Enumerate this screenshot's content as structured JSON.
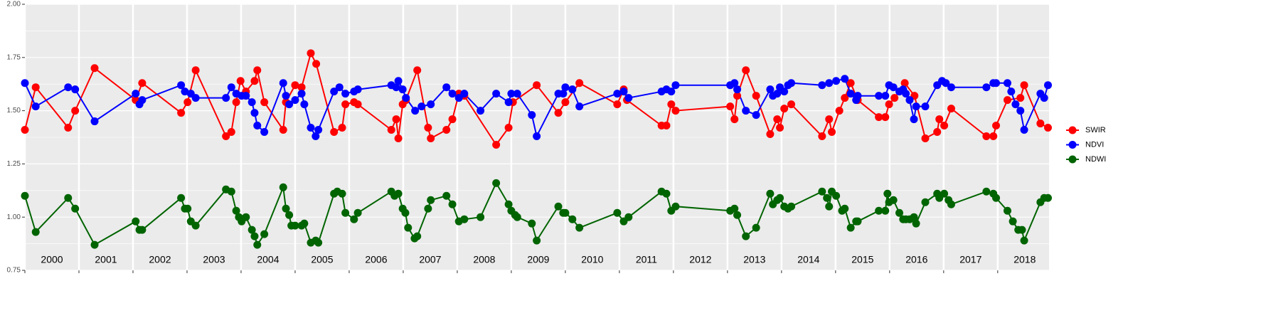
{
  "chart_data": {
    "type": "line",
    "xlim": [
      2000,
      2018.95
    ],
    "ylim": [
      0.75,
      2.0
    ],
    "yticks": [
      0.75,
      {
        "value": 1,
        "label": "1.00"
      },
      1.25,
      {
        "value": 1.5,
        "label": "1.50"
      },
      1.75,
      {
        "value": 2,
        "label": "2.00"
      }
    ],
    "y_minor_ticks": [
      0.875,
      1.125,
      1.375,
      1.625,
      1.875
    ],
    "xgrid": [
      2000,
      2001,
      2002,
      2003,
      2004,
      2005,
      2006,
      2007,
      2008,
      2009,
      2010,
      2011,
      2012,
      2013,
      2014,
      2015,
      2016,
      2017,
      2018
    ],
    "xticks": [
      {
        "value": 2000.5,
        "label": "2000"
      },
      {
        "value": 2001.5,
        "label": "2001"
      },
      {
        "value": 2002.5,
        "label": "2002"
      },
      {
        "value": 2003.5,
        "label": "2003"
      },
      {
        "value": 2004.5,
        "label": "2004"
      },
      {
        "value": 2005.5,
        "label": "2005"
      },
      {
        "value": 2006.5,
        "label": "2006"
      },
      {
        "value": 2007.5,
        "label": "2007"
      },
      {
        "value": 2008.5,
        "label": "2008"
      },
      {
        "value": 2009.5,
        "label": "2009"
      },
      {
        "value": 2010.5,
        "label": "2010"
      },
      {
        "value": 2011.5,
        "label": "2011"
      },
      {
        "value": 2012.5,
        "label": "2012"
      },
      {
        "value": 2013.5,
        "label": "2013"
      },
      {
        "value": 2014.5,
        "label": "2014"
      },
      {
        "value": 2015.5,
        "label": "2015"
      },
      {
        "value": 2016.5,
        "label": "2016"
      },
      {
        "value": 2017.5,
        "label": "2017"
      },
      {
        "value": 2018.5,
        "label": "2018"
      }
    ],
    "grid": true,
    "legend": "right",
    "series": [
      {
        "name": "SWIR",
        "color": "#ff0000",
        "x": [
          2000.0,
          2000.2,
          2000.8,
          2000.93,
          2001.29,
          2002.05,
          2002.17,
          2002.89,
          2003.01,
          2003.16,
          2003.72,
          2003.82,
          2003.91,
          2003.99,
          2004.09,
          2004.25,
          2004.3,
          2004.43,
          2004.78,
          2004.83,
          2005.0,
          2005.12,
          2005.29,
          2005.39,
          2005.72,
          2005.87,
          2005.93,
          2006.09,
          2006.16,
          2006.78,
          2006.87,
          2006.91,
          2006.99,
          2007.05,
          2007.26,
          2007.46,
          2007.51,
          2007.8,
          2007.91,
          2008.03,
          2008.13,
          2008.72,
          2008.95,
          2009.03,
          2009.47,
          2009.87,
          2010.0,
          2010.26,
          2010.96,
          2011.08,
          2011.14,
          2011.78,
          2011.87,
          2011.96,
          2012.04,
          2013.05,
          2013.13,
          2013.18,
          2013.34,
          2013.53,
          2013.79,
          2013.92,
          2013.97,
          2014.05,
          2014.18,
          2014.75,
          2014.88,
          2014.93,
          2015.07,
          2015.17,
          2015.28,
          2015.41,
          2015.8,
          2015.92,
          2015.99,
          2016.09,
          2016.28,
          2016.46,
          2016.66,
          2016.88,
          2016.92,
          2017.01,
          2017.14,
          2017.79,
          2017.92,
          2017.97,
          2018.18,
          2018.42,
          2018.49,
          2018.79,
          2018.93
        ],
        "values": [
          1.41,
          1.61,
          1.42,
          1.5,
          1.7,
          1.55,
          1.63,
          1.49,
          1.54,
          1.69,
          1.38,
          1.4,
          1.54,
          1.64,
          1.59,
          1.64,
          1.69,
          1.54,
          1.41,
          1.54,
          1.62,
          1.61,
          1.77,
          1.72,
          1.4,
          1.42,
          1.53,
          1.54,
          1.53,
          1.41,
          1.46,
          1.37,
          1.53,
          1.55,
          1.69,
          1.42,
          1.37,
          1.41,
          1.46,
          1.58,
          1.57,
          1.34,
          1.42,
          1.54,
          1.62,
          1.49,
          1.54,
          1.63,
          1.53,
          1.6,
          1.55,
          1.43,
          1.43,
          1.53,
          1.5,
          1.52,
          1.46,
          1.57,
          1.69,
          1.57,
          1.39,
          1.46,
          1.42,
          1.51,
          1.53,
          1.38,
          1.46,
          1.4,
          1.5,
          1.56,
          1.63,
          1.55,
          1.47,
          1.47,
          1.53,
          1.56,
          1.63,
          1.57,
          1.37,
          1.4,
          1.46,
          1.43,
          1.51,
          1.38,
          1.38,
          1.43,
          1.55,
          1.56,
          1.62,
          1.44,
          1.42
        ]
      },
      {
        "name": "NDVI",
        "color": "#0000ff",
        "x": [
          2000.0,
          2000.2,
          2000.8,
          2000.93,
          2001.29,
          2002.05,
          2002.12,
          2002.17,
          2002.89,
          2002.96,
          2003.07,
          2003.16,
          2003.72,
          2003.82,
          2003.91,
          2004.01,
          2004.09,
          2004.2,
          2004.25,
          2004.3,
          2004.43,
          2004.78,
          2004.83,
          2004.89,
          2005.0,
          2005.12,
          2005.17,
          2005.29,
          2005.38,
          2005.43,
          2005.72,
          2005.82,
          2005.93,
          2006.09,
          2006.16,
          2006.78,
          2006.87,
          2006.91,
          2006.99,
          2007.05,
          2007.22,
          2007.34,
          2007.51,
          2007.8,
          2007.91,
          2008.03,
          2008.13,
          2008.43,
          2008.72,
          2008.95,
          2009.0,
          2009.11,
          2009.38,
          2009.47,
          2009.87,
          2009.96,
          2010.0,
          2010.13,
          2010.26,
          2010.96,
          2011.08,
          2011.17,
          2011.78,
          2011.87,
          2011.96,
          2012.04,
          2013.05,
          2013.13,
          2013.18,
          2013.34,
          2013.53,
          2013.79,
          2013.84,
          2013.92,
          2013.97,
          2014.05,
          2014.12,
          2014.18,
          2014.75,
          2014.88,
          2015.01,
          2015.17,
          2015.28,
          2015.38,
          2015.41,
          2015.8,
          2015.92,
          2015.99,
          2016.07,
          2016.18,
          2016.25,
          2016.3,
          2016.37,
          2016.45,
          2016.49,
          2016.66,
          2016.88,
          2016.97,
          2017.04,
          2017.14,
          2017.79,
          2017.92,
          2017.97,
          2018.18,
          2018.25,
          2018.33,
          2018.42,
          2018.49,
          2018.79,
          2018.86,
          2018.93
        ],
        "values": [
          1.63,
          1.52,
          1.61,
          1.6,
          1.45,
          1.58,
          1.53,
          1.55,
          1.62,
          1.59,
          1.58,
          1.56,
          1.56,
          1.61,
          1.58,
          1.57,
          1.57,
          1.54,
          1.49,
          1.43,
          1.4,
          1.63,
          1.57,
          1.53,
          1.55,
          1.58,
          1.53,
          1.42,
          1.38,
          1.41,
          1.59,
          1.61,
          1.58,
          1.59,
          1.6,
          1.62,
          1.61,
          1.64,
          1.6,
          1.56,
          1.5,
          1.52,
          1.53,
          1.61,
          1.58,
          1.56,
          1.58,
          1.5,
          1.58,
          1.54,
          1.58,
          1.58,
          1.48,
          1.38,
          1.58,
          1.58,
          1.61,
          1.6,
          1.52,
          1.58,
          1.59,
          1.56,
          1.59,
          1.6,
          1.59,
          1.62,
          1.62,
          1.63,
          1.6,
          1.5,
          1.48,
          1.6,
          1.57,
          1.58,
          1.61,
          1.59,
          1.62,
          1.63,
          1.62,
          1.63,
          1.64,
          1.65,
          1.58,
          1.55,
          1.57,
          1.57,
          1.57,
          1.62,
          1.61,
          1.59,
          1.6,
          1.58,
          1.55,
          1.46,
          1.52,
          1.52,
          1.62,
          1.64,
          1.63,
          1.61,
          1.61,
          1.63,
          1.63,
          1.63,
          1.59,
          1.53,
          1.5,
          1.41,
          1.58,
          1.56,
          1.62
        ]
      },
      {
        "name": "NDWI",
        "color": "#006400",
        "x": [
          2000.0,
          2000.2,
          2000.8,
          2000.93,
          2001.29,
          2002.05,
          2002.12,
          2002.17,
          2002.89,
          2002.96,
          2003.01,
          2003.07,
          2003.16,
          2003.72,
          2003.82,
          2003.91,
          2003.96,
          2004.01,
          2004.09,
          2004.2,
          2004.25,
          2004.3,
          2004.43,
          2004.78,
          2004.83,
          2004.89,
          2004.93,
          2005.0,
          2005.12,
          2005.17,
          2005.29,
          2005.38,
          2005.43,
          2005.72,
          2005.78,
          2005.87,
          2005.93,
          2006.09,
          2006.16,
          2006.78,
          2006.84,
          2006.91,
          2006.99,
          2007.04,
          2007.09,
          2007.21,
          2007.26,
          2007.46,
          2007.51,
          2007.8,
          2007.91,
          2008.03,
          2008.13,
          2008.43,
          2008.72,
          2008.95,
          2009.0,
          2009.07,
          2009.11,
          2009.38,
          2009.47,
          2009.87,
          2009.96,
          2010.0,
          2010.13,
          2010.26,
          2010.96,
          2011.08,
          2011.17,
          2011.78,
          2011.87,
          2011.96,
          2012.04,
          2013.05,
          2013.13,
          2013.18,
          2013.34,
          2013.53,
          2013.79,
          2013.84,
          2013.92,
          2013.97,
          2014.05,
          2014.12,
          2014.18,
          2014.75,
          2014.84,
          2014.88,
          2014.93,
          2015.01,
          2015.12,
          2015.17,
          2015.28,
          2015.38,
          2015.41,
          2015.8,
          2015.92,
          2015.96,
          2015.99,
          2016.07,
          2016.18,
          2016.25,
          2016.3,
          2016.37,
          2016.45,
          2016.49,
          2016.66,
          2016.88,
          2016.92,
          2017.01,
          2017.09,
          2017.14,
          2017.79,
          2017.92,
          2017.97,
          2018.18,
          2018.28,
          2018.38,
          2018.45,
          2018.49,
          2018.79,
          2018.86,
          2018.93
        ],
        "values": [
          1.1,
          0.93,
          1.09,
          1.04,
          0.87,
          0.98,
          0.94,
          0.94,
          1.09,
          1.04,
          1.04,
          0.98,
          0.96,
          1.13,
          1.12,
          1.03,
          1.0,
          0.98,
          1.0,
          0.94,
          0.91,
          0.87,
          0.92,
          1.14,
          1.04,
          1.01,
          0.96,
          0.96,
          0.96,
          0.97,
          0.88,
          0.89,
          0.88,
          1.11,
          1.12,
          1.11,
          1.02,
          0.99,
          1.02,
          1.12,
          1.1,
          1.11,
          1.04,
          1.02,
          0.95,
          0.9,
          0.91,
          1.04,
          1.08,
          1.1,
          1.06,
          0.98,
          0.99,
          1.0,
          1.16,
          1.06,
          1.03,
          1.01,
          1.0,
          0.97,
          0.89,
          1.05,
          1.02,
          1.02,
          0.99,
          0.95,
          1.02,
          0.98,
          1.0,
          1.12,
          1.11,
          1.03,
          1.05,
          1.03,
          1.04,
          1.01,
          0.91,
          0.95,
          1.11,
          1.06,
          1.08,
          1.09,
          1.05,
          1.04,
          1.05,
          1.12,
          1.09,
          1.05,
          1.12,
          1.1,
          1.03,
          1.04,
          0.95,
          0.98,
          0.98,
          1.03,
          1.03,
          1.11,
          1.07,
          1.08,
          1.02,
          0.99,
          0.99,
          0.99,
          1.0,
          0.97,
          1.07,
          1.11,
          1.09,
          1.11,
          1.08,
          1.06,
          1.12,
          1.11,
          1.09,
          1.03,
          0.98,
          0.94,
          0.94,
          0.89,
          1.07,
          1.09,
          1.09
        ]
      }
    ]
  }
}
